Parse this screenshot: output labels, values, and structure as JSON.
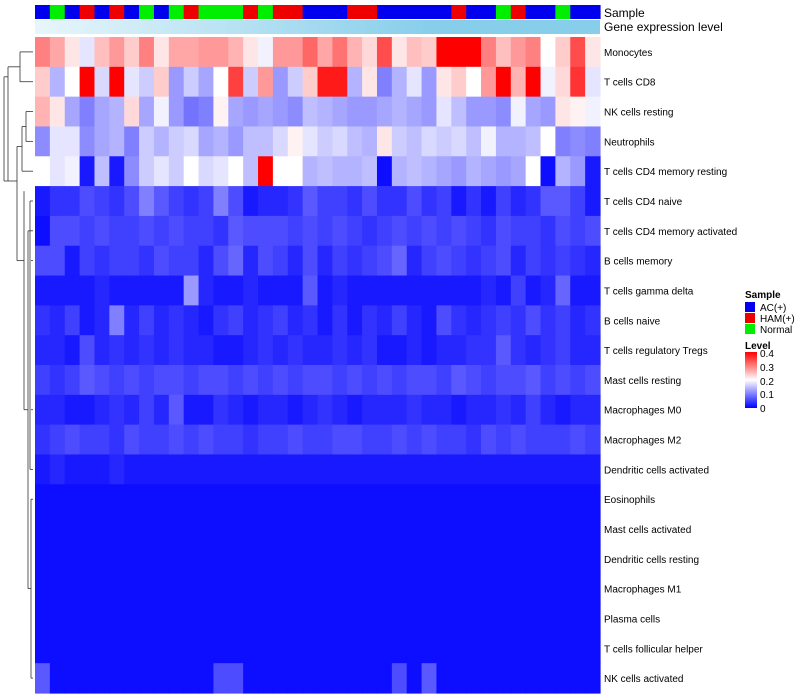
{
  "chart_data": {
    "type": "heatmap",
    "annotation_labels": {
      "sample": "Sample",
      "expression": "Gene expression level"
    },
    "legend": {
      "sample": {
        "title": "Sample",
        "entries": [
          {
            "label": "AC(+)",
            "color": "#0000ee"
          },
          {
            "label": "HAM(+)",
            "color": "#ee0000"
          },
          {
            "label": "Normal",
            "color": "#00ee00"
          }
        ]
      },
      "level": {
        "title": "Level",
        "ticks": [
          "0.4",
          "0.3",
          "0.2",
          "0.1",
          "0"
        ],
        "range": [
          0,
          0.4
        ]
      }
    },
    "colors": {
      "low": "#0000ff",
      "mid": "#ffffff",
      "high": "#ff0000",
      "expression_bar": "#87ceeb",
      "expression_bar_light": "#e8f6fb",
      "dendrogram": "#333333"
    },
    "columns": {
      "count": 38,
      "sample_groups": [
        "AC",
        "Normal",
        "AC",
        "HAM",
        "AC",
        "HAM",
        "AC",
        "Normal",
        "AC",
        "Normal",
        "HAM",
        "Normal",
        "Normal",
        "Normal",
        "HAM",
        "Normal",
        "HAM",
        "HAM",
        "AC",
        "AC",
        "AC",
        "HAM",
        "HAM",
        "AC",
        "AC",
        "AC",
        "AC",
        "AC",
        "HAM",
        "AC",
        "AC",
        "Normal",
        "HAM",
        "AC",
        "AC",
        "Normal",
        "AC",
        "AC"
      ]
    },
    "rows": [
      "Monocytes",
      "T cells CD8",
      "NK cells resting",
      "Neutrophils",
      "T cells CD4 memory resting",
      "T cells CD4 naive",
      "T cells CD4 memory activated",
      "B cells memory",
      "T cells gamma delta",
      "B cells naive",
      "T cells regulatory  Tregs",
      "Mast cells resting",
      "Macrophages M0",
      "Macrophages M2",
      "Dendritic cells activated",
      "Eosinophils",
      "Mast cells activated",
      "Dendritic cells resting",
      "Macrophages M1",
      "Plasma cells",
      "T cells follicular helper",
      "NK cells activated"
    ],
    "values": [
      [
        0.3,
        0.27,
        0.22,
        0.18,
        0.25,
        0.28,
        0.24,
        0.3,
        0.22,
        0.27,
        0.27,
        0.28,
        0.28,
        0.26,
        0.22,
        0.19,
        0.28,
        0.28,
        0.32,
        0.27,
        0.31,
        0.26,
        0.23,
        0.34,
        0.22,
        0.25,
        0.24,
        0.4,
        0.4,
        0.4,
        0.3,
        0.25,
        0.28,
        0.3,
        0.2,
        0.24,
        0.34,
        0.22
      ],
      [
        0.24,
        0.14,
        0.2,
        0.4,
        0.17,
        0.4,
        0.18,
        0.16,
        0.24,
        0.12,
        0.16,
        0.13,
        0.2,
        0.35,
        0.16,
        0.28,
        0.12,
        0.16,
        0.24,
        0.38,
        0.38,
        0.14,
        0.22,
        0.1,
        0.14,
        0.18,
        0.12,
        0.22,
        0.24,
        0.2,
        0.28,
        0.4,
        0.26,
        0.4,
        0.19,
        0.23,
        0.36,
        0.18
      ],
      [
        0.26,
        0.22,
        0.13,
        0.1,
        0.13,
        0.14,
        0.23,
        0.13,
        0.19,
        0.12,
        0.09,
        0.1,
        0.21,
        0.13,
        0.12,
        0.13,
        0.12,
        0.11,
        0.15,
        0.14,
        0.13,
        0.12,
        0.12,
        0.13,
        0.14,
        0.13,
        0.12,
        0.18,
        0.15,
        0.12,
        0.12,
        0.11,
        0.19,
        0.13,
        0.12,
        0.22,
        0.21,
        0.19
      ],
      [
        0.11,
        0.18,
        0.18,
        0.11,
        0.13,
        0.14,
        0.1,
        0.16,
        0.14,
        0.16,
        0.17,
        0.13,
        0.14,
        0.12,
        0.15,
        0.15,
        0.17,
        0.21,
        0.18,
        0.16,
        0.17,
        0.15,
        0.14,
        0.22,
        0.16,
        0.15,
        0.17,
        0.16,
        0.17,
        0.15,
        0.19,
        0.14,
        0.14,
        0.15,
        0.2,
        0.1,
        0.11,
        0.1
      ],
      [
        0.2,
        0.18,
        0.19,
        0.02,
        0.15,
        0.02,
        0.11,
        0.16,
        0.18,
        0.16,
        0.2,
        0.17,
        0.18,
        0.2,
        0.15,
        0.4,
        0.2,
        0.2,
        0.14,
        0.15,
        0.14,
        0.14,
        0.15,
        0.01,
        0.14,
        0.15,
        0.14,
        0.13,
        0.12,
        0.14,
        0.13,
        0.12,
        0.13,
        0.2,
        0.01,
        0.14,
        0.12,
        0.02
      ],
      [
        0.02,
        0.04,
        0.04,
        0.06,
        0.05,
        0.04,
        0.06,
        0.1,
        0.07,
        0.05,
        0.04,
        0.05,
        0.1,
        0.06,
        0.02,
        0.03,
        0.03,
        0.04,
        0.07,
        0.05,
        0.05,
        0.04,
        0.06,
        0.04,
        0.04,
        0.06,
        0.04,
        0.05,
        0.02,
        0.04,
        0.02,
        0.05,
        0.03,
        0.04,
        0.07,
        0.07,
        0.05,
        0.02
      ],
      [
        0.01,
        0.06,
        0.06,
        0.05,
        0.06,
        0.05,
        0.05,
        0.06,
        0.05,
        0.06,
        0.05,
        0.05,
        0.04,
        0.07,
        0.06,
        0.06,
        0.06,
        0.05,
        0.06,
        0.05,
        0.06,
        0.05,
        0.04,
        0.05,
        0.06,
        0.05,
        0.06,
        0.05,
        0.06,
        0.05,
        0.04,
        0.06,
        0.05,
        0.05,
        0.04,
        0.06,
        0.05,
        0.06
      ],
      [
        0.06,
        0.06,
        0.02,
        0.05,
        0.04,
        0.05,
        0.05,
        0.04,
        0.06,
        0.05,
        0.05,
        0.03,
        0.06,
        0.08,
        0.03,
        0.06,
        0.05,
        0.03,
        0.06,
        0.03,
        0.05,
        0.04,
        0.05,
        0.06,
        0.08,
        0.03,
        0.05,
        0.06,
        0.05,
        0.04,
        0.05,
        0.06,
        0.03,
        0.05,
        0.04,
        0.05,
        0.04,
        0.03
      ],
      [
        0.02,
        0.02,
        0.02,
        0.02,
        0.03,
        0.02,
        0.02,
        0.02,
        0.02,
        0.02,
        0.12,
        0.03,
        0.02,
        0.02,
        0.03,
        0.02,
        0.02,
        0.02,
        0.07,
        0.02,
        0.03,
        0.02,
        0.02,
        0.02,
        0.02,
        0.02,
        0.02,
        0.02,
        0.02,
        0.02,
        0.03,
        0.02,
        0.05,
        0.02,
        0.03,
        0.08,
        0.02,
        0.02
      ],
      [
        0.04,
        0.03,
        0.05,
        0.02,
        0.03,
        0.1,
        0.03,
        0.05,
        0.03,
        0.04,
        0.03,
        0.02,
        0.04,
        0.05,
        0.03,
        0.04,
        0.05,
        0.03,
        0.04,
        0.02,
        0.04,
        0.02,
        0.04,
        0.03,
        0.05,
        0.03,
        0.02,
        0.06,
        0.04,
        0.03,
        0.04,
        0.05,
        0.04,
        0.06,
        0.04,
        0.05,
        0.03,
        0.04
      ],
      [
        0.03,
        0.03,
        0.02,
        0.06,
        0.03,
        0.04,
        0.03,
        0.04,
        0.03,
        0.04,
        0.03,
        0.03,
        0.02,
        0.02,
        0.03,
        0.04,
        0.03,
        0.04,
        0.03,
        0.03,
        0.04,
        0.03,
        0.04,
        0.02,
        0.02,
        0.03,
        0.02,
        0.03,
        0.03,
        0.04,
        0.04,
        0.07,
        0.04,
        0.03,
        0.04,
        0.05,
        0.03,
        0.03
      ],
      [
        0.05,
        0.04,
        0.05,
        0.07,
        0.06,
        0.05,
        0.06,
        0.05,
        0.06,
        0.06,
        0.05,
        0.06,
        0.06,
        0.05,
        0.06,
        0.05,
        0.06,
        0.05,
        0.06,
        0.06,
        0.05,
        0.06,
        0.05,
        0.06,
        0.05,
        0.06,
        0.06,
        0.05,
        0.07,
        0.06,
        0.05,
        0.06,
        0.06,
        0.07,
        0.05,
        0.06,
        0.05,
        0.06
      ],
      [
        0.03,
        0.03,
        0.02,
        0.02,
        0.03,
        0.04,
        0.03,
        0.05,
        0.03,
        0.07,
        0.02,
        0.02,
        0.04,
        0.03,
        0.02,
        0.03,
        0.03,
        0.02,
        0.03,
        0.04,
        0.03,
        0.02,
        0.03,
        0.03,
        0.03,
        0.04,
        0.03,
        0.03,
        0.02,
        0.03,
        0.03,
        0.04,
        0.03,
        0.05,
        0.03,
        0.02,
        0.03,
        0.03
      ],
      [
        0.04,
        0.05,
        0.06,
        0.05,
        0.05,
        0.04,
        0.06,
        0.05,
        0.05,
        0.06,
        0.05,
        0.06,
        0.05,
        0.05,
        0.04,
        0.05,
        0.05,
        0.06,
        0.05,
        0.05,
        0.06,
        0.06,
        0.05,
        0.05,
        0.06,
        0.05,
        0.06,
        0.05,
        0.05,
        0.04,
        0.06,
        0.05,
        0.06,
        0.05,
        0.05,
        0.05,
        0.06,
        0.05
      ],
      [
        0.02,
        0.03,
        0.02,
        0.02,
        0.02,
        0.03,
        0.02,
        0.02,
        0.02,
        0.02,
        0.02,
        0.02,
        0.02,
        0.02,
        0.02,
        0.02,
        0.02,
        0.02,
        0.02,
        0.02,
        0.02,
        0.02,
        0.02,
        0.02,
        0.02,
        0.02,
        0.02,
        0.02,
        0.02,
        0.02,
        0.02,
        0.02,
        0.02,
        0.02,
        0.02,
        0.02,
        0.02,
        0.02
      ],
      [
        0.01,
        0.01,
        0.01,
        0.01,
        0.01,
        0.01,
        0.01,
        0.01,
        0.01,
        0.01,
        0.01,
        0.01,
        0.01,
        0.01,
        0.01,
        0.01,
        0.01,
        0.01,
        0.01,
        0.01,
        0.01,
        0.01,
        0.01,
        0.01,
        0.01,
        0.01,
        0.01,
        0.01,
        0.01,
        0.01,
        0.01,
        0.01,
        0.01,
        0.01,
        0.01,
        0.01,
        0.01,
        0.01
      ],
      [
        0.01,
        0.01,
        0.01,
        0.01,
        0.01,
        0.01,
        0.01,
        0.01,
        0.01,
        0.01,
        0.01,
        0.01,
        0.01,
        0.01,
        0.01,
        0.01,
        0.01,
        0.01,
        0.01,
        0.01,
        0.01,
        0.01,
        0.01,
        0.01,
        0.01,
        0.01,
        0.01,
        0.01,
        0.01,
        0.01,
        0.01,
        0.01,
        0.01,
        0.01,
        0.01,
        0.01,
        0.01,
        0.01
      ],
      [
        0.01,
        0.01,
        0.01,
        0.01,
        0.01,
        0.01,
        0.01,
        0.01,
        0.01,
        0.01,
        0.01,
        0.01,
        0.01,
        0.01,
        0.01,
        0.01,
        0.01,
        0.01,
        0.01,
        0.01,
        0.01,
        0.01,
        0.01,
        0.01,
        0.01,
        0.01,
        0.01,
        0.01,
        0.01,
        0.01,
        0.01,
        0.01,
        0.01,
        0.01,
        0.01,
        0.01,
        0.01,
        0.01
      ],
      [
        0.01,
        0.01,
        0.01,
        0.01,
        0.01,
        0.01,
        0.01,
        0.01,
        0.01,
        0.01,
        0.01,
        0.01,
        0.01,
        0.01,
        0.01,
        0.01,
        0.01,
        0.01,
        0.01,
        0.01,
        0.01,
        0.01,
        0.01,
        0.01,
        0.01,
        0.01,
        0.01,
        0.01,
        0.01,
        0.01,
        0.01,
        0.01,
        0.01,
        0.01,
        0.01,
        0.01,
        0.01,
        0.01
      ],
      [
        0.01,
        0.01,
        0.01,
        0.01,
        0.01,
        0.01,
        0.01,
        0.01,
        0.01,
        0.01,
        0.01,
        0.01,
        0.01,
        0.01,
        0.01,
        0.01,
        0.01,
        0.01,
        0.01,
        0.01,
        0.01,
        0.01,
        0.01,
        0.01,
        0.01,
        0.01,
        0.01,
        0.01,
        0.01,
        0.01,
        0.01,
        0.01,
        0.01,
        0.01,
        0.01,
        0.01,
        0.01,
        0.01
      ],
      [
        0.01,
        0.01,
        0.01,
        0.01,
        0.01,
        0.01,
        0.01,
        0.01,
        0.01,
        0.01,
        0.01,
        0.01,
        0.01,
        0.01,
        0.01,
        0.01,
        0.01,
        0.01,
        0.01,
        0.01,
        0.01,
        0.01,
        0.01,
        0.01,
        0.01,
        0.01,
        0.01,
        0.01,
        0.01,
        0.01,
        0.01,
        0.01,
        0.01,
        0.01,
        0.01,
        0.01,
        0.01,
        0.01
      ],
      [
        0.07,
        0.01,
        0.01,
        0.01,
        0.01,
        0.01,
        0.01,
        0.01,
        0.01,
        0.01,
        0.01,
        0.01,
        0.06,
        0.06,
        0.01,
        0.01,
        0.01,
        0.01,
        0.01,
        0.01,
        0.01,
        0.01,
        0.01,
        0.01,
        0.06,
        0.01,
        0.07,
        0.01,
        0.01,
        0.01,
        0.01,
        0.01,
        0.01,
        0.01,
        0.01,
        0.01,
        0.01,
        0.01
      ]
    ]
  }
}
